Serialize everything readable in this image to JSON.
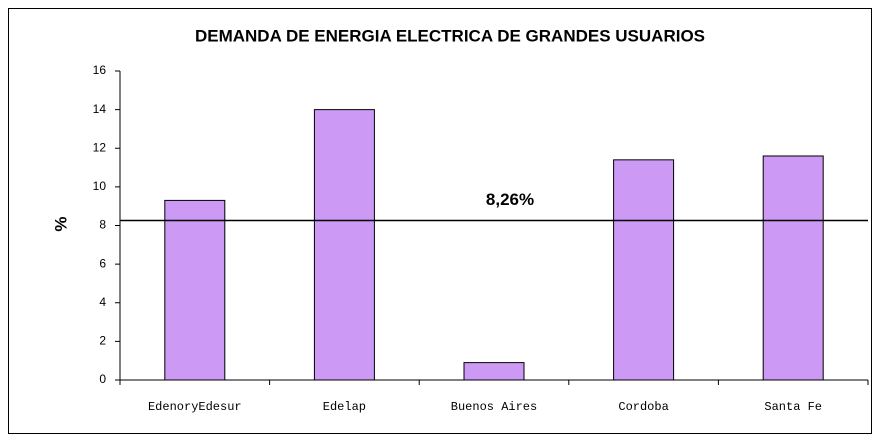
{
  "chart_data": {
    "type": "bar",
    "title": "DEMANDA DE ENERGIA ELECTRICA DE GRANDES USUARIOS",
    "y_label": "%",
    "categories": [
      "EdenoryEdesur",
      "Edelap",
      "Buenos Aires",
      "Cordoba",
      "Santa Fe"
    ],
    "values": [
      9.3,
      14.0,
      0.9,
      11.4,
      11.6
    ],
    "color": "#cc99f5",
    "ylim": [
      0,
      16
    ],
    "yticks": [
      0,
      2,
      4,
      6,
      8,
      10,
      12,
      14,
      16
    ],
    "reference_line": {
      "value": 8.26,
      "label": "8,26%"
    }
  }
}
